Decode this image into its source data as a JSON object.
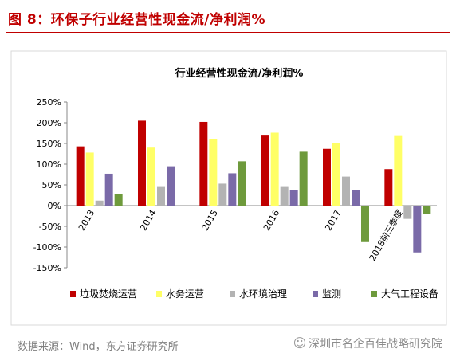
{
  "figure": {
    "title": "图 8：环保子行业经营性现金流/净利润%",
    "source": "数据来源：Wind，东方证券研究所",
    "watermark": "深圳市名企百佳战略研究院",
    "watermark_icon": "wechat-icon"
  },
  "chart_data": {
    "type": "bar",
    "title": "行业经营性现金流/净利润%",
    "categories": [
      "2013",
      "2014",
      "2015",
      "2016",
      "2017",
      "2018前三季度"
    ],
    "series": [
      {
        "name": "垃圾焚烧运营",
        "color": "#c00000",
        "values": [
          143,
          205,
          202,
          169,
          137,
          88
        ]
      },
      {
        "name": "水务运营",
        "color": "#ffff66",
        "values": [
          128,
          140,
          160,
          176,
          150,
          168
        ]
      },
      {
        "name": "水环境治理",
        "color": "#b3b3b3",
        "values": [
          12,
          45,
          53,
          45,
          70,
          -32
        ]
      },
      {
        "name": "监测",
        "color": "#7a6aa8",
        "values": [
          77,
          95,
          78,
          38,
          38,
          -113
        ]
      },
      {
        "name": "大气工程设备",
        "color": "#6e9a3c",
        "values": [
          28,
          null,
          107,
          130,
          -88,
          -20
        ]
      }
    ],
    "ylim": [
      -150,
      250
    ],
    "yticks": [
      -150,
      -100,
      -50,
      0,
      50,
      100,
      150,
      200,
      250
    ],
    "ytick_labels": [
      "-150%",
      "-100%",
      "-50%",
      "0%",
      "50%",
      "100%",
      "150%",
      "200%",
      "250%"
    ],
    "grid": false,
    "legend": "bottom"
  }
}
